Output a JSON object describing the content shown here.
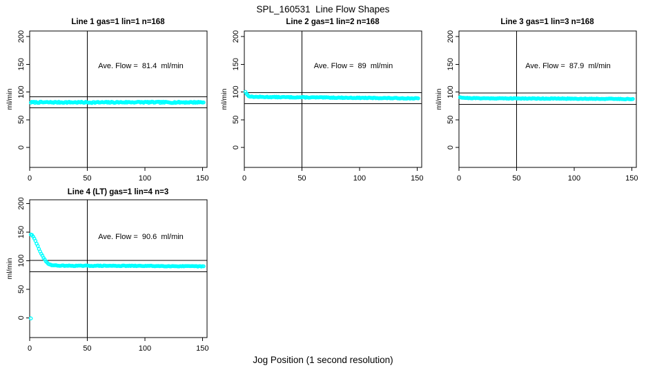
{
  "figure": {
    "title": "SPL_160531  Line Flow Shapes",
    "xlabel": "Jog Position (1 second resolution)"
  },
  "chart_data": [
    {
      "type": "scatter",
      "title": "Line 1 gas=1 lin=1 n=168",
      "annotation": "Ave. Flow =  81.4  ml/min",
      "ave_flow_ml_min": 81.4,
      "n": 168,
      "ylabel": "ml/min",
      "xlabel": "",
      "marker_shape": "open-circle",
      "marker_color": "#00FFFF",
      "xlim": [
        0,
        154
      ],
      "ylim": [
        -36,
        210
      ],
      "xticks": [
        0,
        50,
        100,
        150
      ],
      "yticks": [
        0,
        50,
        100,
        150,
        200
      ],
      "ref_lines": {
        "vertical_x": 50,
        "horizontal_y": [
          91.4,
          71.4
        ]
      },
      "series_profile": {
        "x_start": 1,
        "x_end": 151,
        "n_points": 168,
        "noise": 1.1,
        "seed": 7,
        "anchors": [
          [
            1,
            81.3
          ],
          [
            30,
            81.4
          ],
          [
            60,
            81.2
          ],
          [
            90,
            81.6
          ],
          [
            120,
            81.3
          ],
          [
            151,
            81.5
          ]
        ],
        "outliers": []
      }
    },
    {
      "type": "scatter",
      "title": "Line 2 gas=1 lin=2 n=168",
      "annotation": "Ave. Flow =  89  ml/min",
      "ave_flow_ml_min": 89,
      "n": 168,
      "ylabel": "ml/min",
      "xlabel": "",
      "marker_shape": "open-circle",
      "marker_color": "#00FFFF",
      "xlim": [
        0,
        154
      ],
      "ylim": [
        -36,
        210
      ],
      "xticks": [
        0,
        50,
        100,
        150
      ],
      "yticks": [
        0,
        50,
        100,
        150,
        200
      ],
      "ref_lines": {
        "vertical_x": 50,
        "horizontal_y": [
          99,
          79
        ]
      },
      "series_profile": {
        "x_start": 1,
        "x_end": 151,
        "n_points": 168,
        "noise": 0.65,
        "seed": 13,
        "anchors": [
          [
            1,
            100.5
          ],
          [
            2,
            96.5
          ],
          [
            3,
            94
          ],
          [
            4,
            92.5
          ],
          [
            6,
            91.5
          ],
          [
            10,
            91.2
          ],
          [
            25,
            90.8
          ],
          [
            60,
            90.2
          ],
          [
            100,
            89.4
          ],
          [
            130,
            88.9
          ],
          [
            151,
            88.4
          ]
        ],
        "outliers": []
      }
    },
    {
      "type": "scatter",
      "title": "Line 3 gas=1 lin=3 n=168",
      "annotation": "Ave. Flow =  87.9  ml/min",
      "ave_flow_ml_min": 87.9,
      "n": 168,
      "ylabel": "ml/min",
      "xlabel": "",
      "marker_shape": "open-circle",
      "marker_color": "#00FFFF",
      "xlim": [
        0,
        154
      ],
      "ylim": [
        -36,
        210
      ],
      "xticks": [
        0,
        50,
        100,
        150
      ],
      "yticks": [
        0,
        50,
        100,
        150,
        200
      ],
      "ref_lines": {
        "vertical_x": 50,
        "horizontal_y": [
          97.9,
          77.9
        ]
      },
      "series_profile": {
        "x_start": 1,
        "x_end": 151,
        "n_points": 168,
        "noise": 0.6,
        "seed": 21,
        "anchors": [
          [
            1,
            90.8
          ],
          [
            3,
            89.8
          ],
          [
            8,
            89
          ],
          [
            25,
            88.6
          ],
          [
            70,
            88.2
          ],
          [
            120,
            87.8
          ],
          [
            151,
            87.3
          ]
        ],
        "outliers": []
      }
    },
    {
      "type": "scatter",
      "title": "Line 4 (LT) gas=1 lin=4 n=3",
      "annotation": "Ave. Flow =  90.6  ml/min",
      "ave_flow_ml_min": 90.6,
      "n": 3,
      "ylabel": "ml/min",
      "xlabel": "",
      "marker_shape": "open-circle",
      "marker_color": "#00FFFF",
      "xlim": [
        0,
        154
      ],
      "ylim": [
        -34.5,
        206.5
      ],
      "xticks": [
        0,
        50,
        100,
        150
      ],
      "yticks": [
        0,
        50,
        100,
        150,
        200
      ],
      "ref_lines": {
        "vertical_x": 50,
        "horizontal_y": [
          100.6,
          80.6
        ]
      },
      "series_profile": {
        "x_start": 1,
        "x_end": 151,
        "n_points": 150,
        "noise": 0.55,
        "seed": 29,
        "anchors": [
          [
            1,
            146
          ],
          [
            2,
            144.5
          ],
          [
            3,
            142
          ],
          [
            4,
            138.5
          ],
          [
            5,
            134.5
          ],
          [
            6,
            130
          ],
          [
            7,
            125.5
          ],
          [
            8,
            121
          ],
          [
            9,
            116.5
          ],
          [
            10,
            112.5
          ],
          [
            11,
            108.5
          ],
          [
            12,
            105
          ],
          [
            13,
            101.8
          ],
          [
            14,
            99
          ],
          [
            15,
            96.8
          ],
          [
            16,
            95.2
          ],
          [
            17,
            94
          ],
          [
            18,
            93
          ],
          [
            19,
            92.4
          ],
          [
            21,
            91.8
          ],
          [
            25,
            91.3
          ],
          [
            40,
            91
          ],
          [
            70,
            91
          ],
          [
            100,
            90.8
          ],
          [
            130,
            90.3
          ],
          [
            151,
            90
          ]
        ],
        "outliers": [
          [
            1,
            -1
          ]
        ]
      }
    }
  ]
}
